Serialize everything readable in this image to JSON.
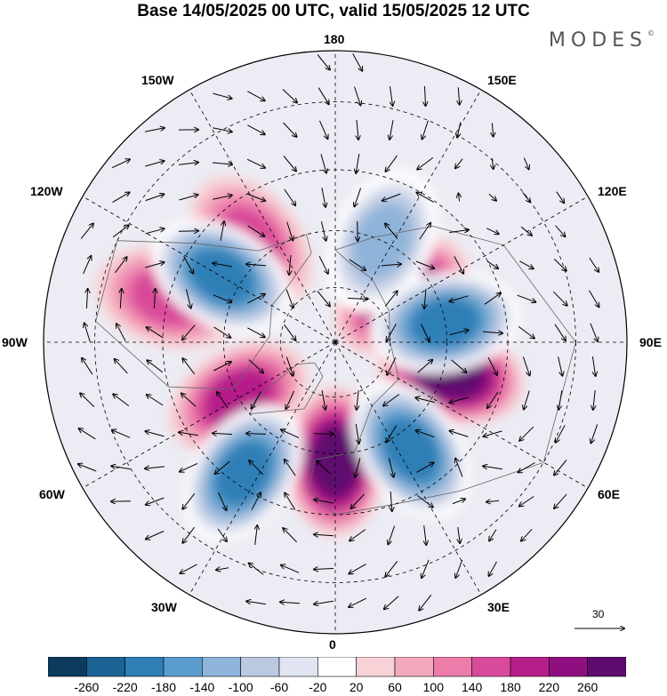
{
  "title": "Base 14/05/2025 00 UTC, valid 15/05/2025 12 UTC",
  "brand": "MODES",
  "brand_mark": "©",
  "map": {
    "projection": "north-polar-stereographic",
    "longitude_labels": {
      "top": "180",
      "bottom": "0",
      "left": "90W",
      "right": "90E",
      "upper_left_1": "150W",
      "upper_left_2": "120W",
      "lower_left_1": "60W",
      "lower_left_2": "30W",
      "upper_right_1": "150E",
      "upper_right_2": "120E",
      "lower_right_1": "60E",
      "lower_right_2": "30E"
    },
    "gridlines": "dashed",
    "reference_vector_value": "30",
    "anomaly_centers": [
      {
        "lon": 125,
        "lat": 68,
        "sign": "positive",
        "max": 220
      },
      {
        "lon": 75,
        "lat": 58,
        "sign": "positive",
        "max": 260
      },
      {
        "lon": 0,
        "lat": 58,
        "sign": "positive",
        "max": 260
      },
      {
        "lon": -105,
        "lat": 45,
        "sign": "positive",
        "max": 140
      },
      {
        "lon": -60,
        "lat": 60,
        "sign": "positive",
        "max": 180
      },
      {
        "lon": -140,
        "lat": 55,
        "sign": "positive",
        "max": 140
      },
      {
        "lon": 155,
        "lat": 60,
        "sign": "negative",
        "min": -140
      },
      {
        "lon": 100,
        "lat": 60,
        "sign": "negative",
        "min": -220
      },
      {
        "lon": 35,
        "lat": 55,
        "sign": "negative",
        "min": -220
      },
      {
        "lon": -35,
        "lat": 48,
        "sign": "negative",
        "min": -220
      },
      {
        "lon": -120,
        "lat": 55,
        "sign": "negative",
        "min": -220
      }
    ]
  },
  "colorbar": {
    "tick_labels": [
      "-260",
      "-220",
      "-180",
      "-140",
      "-100",
      "-60",
      "-20",
      "20",
      "60",
      "100",
      "140",
      "180",
      "220",
      "260"
    ],
    "colors": [
      "#0d3b5e",
      "#1a6394",
      "#2e7fb6",
      "#5a9dcc",
      "#8eb4d9",
      "#bac8e2",
      "#e1e4f1",
      "#ffffff",
      "#f7d2d6",
      "#f3a9bd",
      "#ec7daa",
      "#d94a9a",
      "#b51f8a",
      "#8e0f7f",
      "#5e0a6e"
    ]
  }
}
